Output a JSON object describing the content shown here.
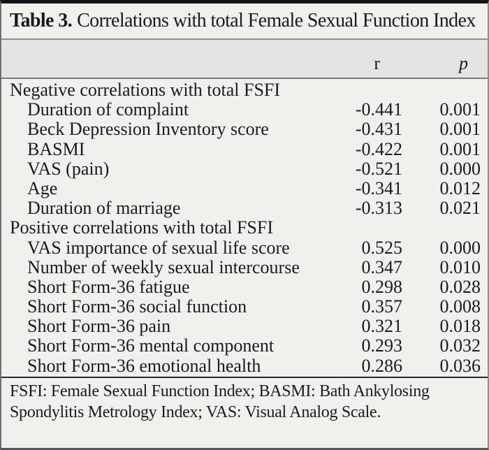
{
  "table": {
    "title_bold": "Table 3.",
    "title_rest": "Correlations with total Female Sexual Function Index",
    "header": {
      "r": "r",
      "p": "p"
    },
    "rows": [
      {
        "label": "Negative correlations with total FSFI",
        "section": true
      },
      {
        "label": "Duration of complaint",
        "r": "-0.441",
        "p": "0.001"
      },
      {
        "label": "Beck Depression Inventory score",
        "r": "-0.431",
        "p": "0.001"
      },
      {
        "label": "BASMI",
        "r": "-0.422",
        "p": "0.001"
      },
      {
        "label": "VAS (pain)",
        "r": "-0.521",
        "p": "0.000"
      },
      {
        "label": "Age",
        "r": "-0.341",
        "p": "0.012"
      },
      {
        "label": "Duration of marriage",
        "r": "-0.313",
        "p": "0.021"
      },
      {
        "label": "Positive correlations with total FSFI",
        "section": true
      },
      {
        "label": "VAS importance of sexual life score",
        "r": "0.525",
        "p": "0.000"
      },
      {
        "label": "Number of weekly sexual intercourse",
        "r": "0.347",
        "p": "0.010"
      },
      {
        "label": "Short Form-36 fatigue",
        "r": "0.298",
        "p": "0.028"
      },
      {
        "label": "Short Form-36 social function",
        "r": "0.357",
        "p": "0.008"
      },
      {
        "label": "Short Form-36 pain",
        "r": "0.321",
        "p": "0.018"
      },
      {
        "label": "Short Form-36 mental component",
        "r": "0.293",
        "p": "0.032"
      },
      {
        "label": "Short Form-36 emotional health",
        "r": "0.286",
        "p": "0.036"
      }
    ],
    "footnote": "FSFI: Female Sexual Function Index; BASMI: Bath Ankylosing Spondylitis Metrology Index; VAS: Visual Analog Scale.",
    "colors": {
      "background": "#f0f0ed",
      "header_band": "#e4e4e2",
      "rule_gray": "#8f8f8f",
      "rule_dark": "#2b2b2b",
      "top_bar": "#141414",
      "text": "#1b1b1b"
    }
  }
}
